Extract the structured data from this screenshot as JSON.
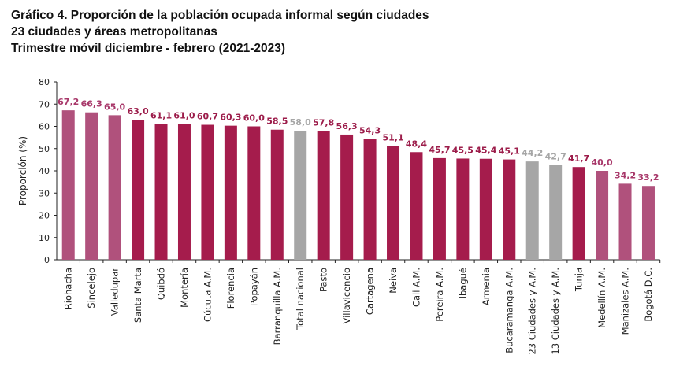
{
  "chart_data": {
    "type": "bar",
    "title": "Gráfico 4. Proporción de la población ocupada informal según ciudades",
    "subtitle": "23 ciudades y áreas metropolitanas",
    "subtitle2": "Trimestre móvil diciembre - febrero (2021-2023)",
    "xlabel": "",
    "ylabel": "Proporción (%)",
    "ylim": [
      0,
      80
    ],
    "yticks": [
      0,
      10,
      20,
      30,
      40,
      50,
      60,
      70,
      80
    ],
    "grid": false,
    "categories": [
      "Riohacha",
      "Sincelejo",
      "Valledupar",
      "Santa Marta",
      "Quibdó",
      "Montería",
      "Cúcuta A.M.",
      "Florencia",
      "Popayán",
      "Barranquilla A.M.",
      "Total nacional",
      "Pasto",
      "Villavicencio",
      "Cartagena",
      "Neiva",
      "Cali A.M.",
      "Pereira A.M.",
      "Ibagué",
      "Armenia",
      "Bucaramanga A.M.",
      "23 Ciudades y A.M.",
      "13 Ciudades y A.M.",
      "Tunja",
      "Medellín A.M.",
      "Manizales A.M.",
      "Bogotá D.C."
    ],
    "values": [
      67.2,
      66.3,
      65.0,
      63.0,
      61.1,
      61.0,
      60.7,
      60.3,
      60.0,
      58.5,
      58.0,
      57.8,
      56.3,
      54.3,
      51.1,
      48.4,
      45.7,
      45.5,
      45.4,
      45.1,
      44.2,
      42.7,
      41.7,
      40.0,
      34.2,
      33.2
    ],
    "labels": [
      "67,2",
      "66,3",
      "65,0",
      "63,0",
      "61,1",
      "61,0",
      "60,7",
      "60,3",
      "60,0",
      "58,5",
      "58,0",
      "57,8",
      "56,3",
      "54,3",
      "51,1",
      "48,4",
      "45,7",
      "45,5",
      "45,4",
      "45,1",
      "44,2",
      "42,7",
      "41,7",
      "40,0",
      "34,2",
      "33,2"
    ],
    "bar_groups": [
      "light",
      "light",
      "light",
      "dark",
      "dark",
      "dark",
      "dark",
      "dark",
      "dark",
      "dark",
      "gray",
      "dark",
      "dark",
      "dark",
      "dark",
      "dark",
      "dark",
      "dark",
      "dark",
      "dark",
      "gray",
      "gray",
      "dark",
      "light",
      "light",
      "light"
    ],
    "colors": {
      "dark": "#a51c4c",
      "light": "#b0517c",
      "gray": "#a6a6a6",
      "dark_label": "#9c1c4a",
      "light_label": "#a8386a",
      "gray_label": "#a6a6a6"
    }
  }
}
